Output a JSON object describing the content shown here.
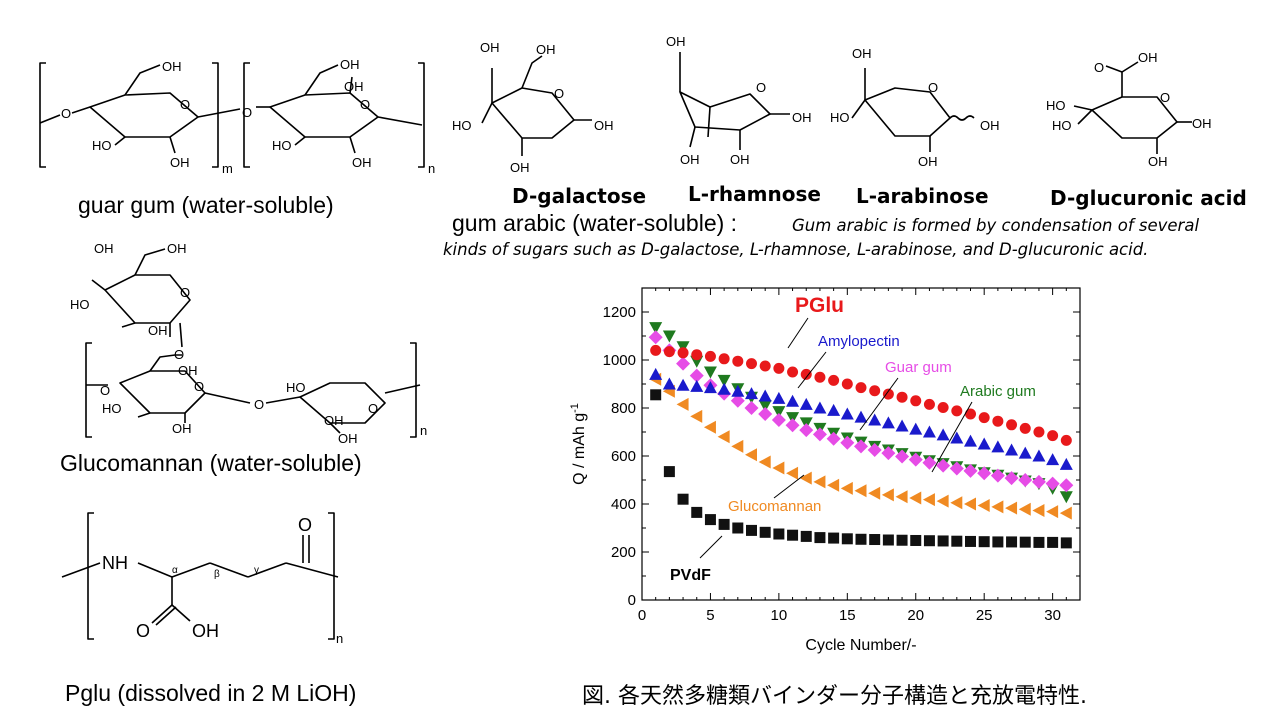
{
  "labels": {
    "guar": "guar gum (water-soluble)",
    "arabic_title": "gum arabic (water-soluble) :",
    "arabic_note_1": "Gum arabic is formed by condensation of several",
    "arabic_note_2": "kinds of sugars  such as D-galactose, L-rhamnose, L-arabinose, and D-glucuronic acid.",
    "glucomannan": "Glucomannan (water-soluble)",
    "pglu": "Pglu  (dissolved in 2 M LiOH)",
    "caption": "図.  各天然多糖類バインダー分子構造と充放電特性."
  },
  "sugars": [
    "D-galactose",
    "L-rhamnose",
    "L-arabinose",
    "D-glucuronic acid"
  ],
  "atoms": {
    "OH": "OH",
    "HO": "HO",
    "O": "O",
    "NH": "NH",
    "m": "m",
    "n": "n",
    "alpha": "α",
    "beta": "β",
    "gamma": "γ"
  },
  "chart_data": {
    "type": "scatter",
    "xlabel": "Cycle Number/-",
    "ylabel": "Q / mAh g-1",
    "xlim": [
      0,
      32
    ],
    "ylim": [
      0,
      1300
    ],
    "xticks": [
      0,
      5,
      10,
      15,
      20,
      25,
      30
    ],
    "yticks": [
      0,
      200,
      400,
      600,
      800,
      1000,
      1200
    ],
    "x": [
      1,
      2,
      3,
      4,
      5,
      6,
      7,
      8,
      9,
      10,
      11,
      12,
      13,
      14,
      15,
      16,
      17,
      18,
      19,
      20,
      21,
      22,
      23,
      24,
      25,
      26,
      27,
      28,
      29,
      30,
      31
    ],
    "series": [
      {
        "name": "PGlu",
        "marker": "circle",
        "color": "#e8191b",
        "values": [
          1040,
          1035,
          1030,
          1022,
          1015,
          1005,
          995,
          985,
          975,
          965,
          950,
          940,
          928,
          915,
          900,
          885,
          872,
          858,
          845,
          830,
          815,
          802,
          788,
          775,
          760,
          745,
          730,
          715,
          700,
          685,
          665
        ]
      },
      {
        "name": "Amylopectin",
        "marker": "triangle-up",
        "color": "#1a1acc",
        "values": [
          940,
          900,
          895,
          890,
          885,
          878,
          870,
          860,
          850,
          840,
          828,
          815,
          800,
          790,
          775,
          762,
          750,
          738,
          725,
          712,
          700,
          688,
          675,
          662,
          650,
          638,
          625,
          612,
          600,
          585,
          565
        ]
      },
      {
        "name": "Guar gum",
        "marker": "diamond",
        "color": "#e64ce6",
        "values": [
          1095,
          1040,
          985,
          935,
          895,
          860,
          830,
          800,
          775,
          750,
          728,
          708,
          690,
          672,
          655,
          640,
          625,
          612,
          598,
          585,
          572,
          560,
          548,
          538,
          528,
          518,
          508,
          500,
          492,
          485,
          478
        ]
      },
      {
        "name": "Arabic gum",
        "marker": "triangle-down",
        "color": "#1f7a1f",
        "values": [
          1135,
          1100,
          1055,
          995,
          950,
          915,
          880,
          845,
          810,
          785,
          760,
          738,
          715,
          695,
          675,
          658,
          640,
          625,
          610,
          595,
          580,
          568,
          555,
          542,
          530,
          520,
          508,
          496,
          485,
          465,
          430
        ]
      },
      {
        "name": "Glucomannan",
        "marker": "triangle-left",
        "color": "#f08a22",
        "values": [
          920,
          870,
          815,
          765,
          720,
          680,
          640,
          605,
          575,
          550,
          528,
          508,
          492,
          478,
          465,
          455,
          445,
          438,
          430,
          425,
          418,
          412,
          405,
          400,
          394,
          388,
          383,
          378,
          373,
          368,
          362
        ]
      },
      {
        "name": "PVdF",
        "marker": "square",
        "color": "#111111",
        "values": [
          855,
          535,
          420,
          365,
          335,
          315,
          300,
          290,
          282,
          275,
          270,
          265,
          260,
          258,
          255,
          253,
          252,
          250,
          249,
          248,
          247,
          246,
          245,
          244,
          243,
          242,
          242,
          241,
          240,
          240,
          238
        ]
      }
    ]
  }
}
